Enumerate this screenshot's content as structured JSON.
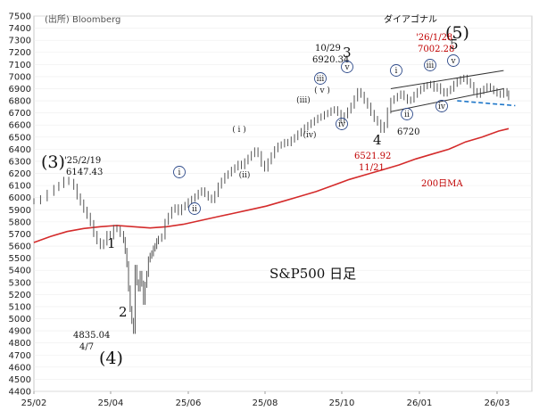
{
  "chart_data": {
    "type": "line",
    "source": "(出所) Bloomberg",
    "title": "S&P500 日足",
    "x_ticks": [
      "25/02",
      "25/04",
      "25/06",
      "25/08",
      "25/10",
      "26/01",
      "26/03"
    ],
    "y_ticks": [
      4400,
      4500,
      4600,
      4700,
      4800,
      4900,
      5000,
      5100,
      5200,
      5300,
      5400,
      5500,
      5600,
      5700,
      5800,
      5900,
      6000,
      6100,
      6200,
      6300,
      6400,
      6500,
      6600,
      6700,
      6800,
      6900,
      7000,
      7100,
      7200,
      7300,
      7400,
      7500
    ],
    "ylim": [
      4400,
      7500
    ],
    "series": [
      {
        "name": "S&P500",
        "style": "daily bars",
        "color": "#555555",
        "points": [
          [
            0,
            5970
          ],
          [
            4,
            5995
          ],
          [
            8,
            6040
          ],
          [
            12,
            6080
          ],
          [
            15,
            6105
          ],
          [
            18,
            6147
          ],
          [
            21,
            6130
          ],
          [
            24,
            6090
          ],
          [
            26,
            6010
          ],
          [
            28,
            5960
          ],
          [
            30,
            5900
          ],
          [
            32,
            5850
          ],
          [
            34,
            5790
          ],
          [
            36,
            5700
          ],
          [
            38,
            5640
          ],
          [
            40,
            5600
          ],
          [
            42,
            5630
          ],
          [
            44,
            5700
          ],
          [
            46,
            5680
          ],
          [
            48,
            5750
          ],
          [
            50,
            5740
          ],
          [
            52,
            5700
          ],
          [
            54,
            5650
          ],
          [
            55,
            5560
          ],
          [
            56,
            5450
          ],
          [
            57,
            5250
          ],
          [
            58,
            5080
          ],
          [
            59,
            4982
          ],
          [
            60,
            4900
          ],
          [
            61,
            5420
          ],
          [
            62,
            5300
          ],
          [
            63,
            5250
          ],
          [
            64,
            5370
          ],
          [
            65,
            5290
          ],
          [
            66,
            5140
          ],
          [
            67,
            5280
          ],
          [
            68,
            5370
          ],
          [
            69,
            5490
          ],
          [
            70,
            5520
          ],
          [
            71,
            5540
          ],
          [
            72,
            5580
          ],
          [
            73,
            5600
          ],
          [
            74,
            5640
          ],
          [
            75,
            5660
          ],
          [
            77,
            5680
          ],
          [
            79,
            5800
          ],
          [
            81,
            5850
          ],
          [
            83,
            5900
          ],
          [
            85,
            5920
          ],
          [
            87,
            5880
          ],
          [
            89,
            5920
          ],
          [
            91,
            5940
          ],
          [
            93,
            5970
          ],
          [
            95,
            5990
          ],
          [
            97,
            6010
          ],
          [
            99,
            6040
          ],
          [
            101,
            6060
          ],
          [
            103,
            6030
          ],
          [
            105,
            6000
          ],
          [
            107,
            5980
          ],
          [
            109,
            6030
          ],
          [
            111,
            6100
          ],
          [
            113,
            6140
          ],
          [
            115,
            6180
          ],
          [
            117,
            6200
          ],
          [
            119,
            6230
          ],
          [
            121,
            6250
          ],
          [
            123,
            6280
          ],
          [
            125,
            6260
          ],
          [
            127,
            6300
          ],
          [
            129,
            6330
          ],
          [
            131,
            6360
          ],
          [
            133,
            6390
          ],
          [
            135,
            6360
          ],
          [
            137,
            6280
          ],
          [
            139,
            6240
          ],
          [
            141,
            6300
          ],
          [
            143,
            6350
          ],
          [
            145,
            6400
          ],
          [
            147,
            6430
          ],
          [
            149,
            6440
          ],
          [
            151,
            6460
          ],
          [
            153,
            6450
          ],
          [
            155,
            6480
          ],
          [
            157,
            6500
          ],
          [
            159,
            6530
          ],
          [
            161,
            6550
          ],
          [
            163,
            6580
          ],
          [
            165,
            6600
          ],
          [
            167,
            6620
          ],
          [
            169,
            6640
          ],
          [
            171,
            6660
          ],
          [
            173,
            6670
          ],
          [
            175,
            6690
          ],
          [
            177,
            6700
          ],
          [
            179,
            6720
          ],
          [
            181,
            6730
          ],
          [
            183,
            6700
          ],
          [
            185,
            6640
          ],
          [
            187,
            6680
          ],
          [
            189,
            6720
          ],
          [
            191,
            6760
          ],
          [
            193,
            6820
          ],
          [
            195,
            6880
          ],
          [
            197,
            6850
          ],
          [
            199,
            6800
          ],
          [
            201,
            6760
          ],
          [
            203,
            6700
          ],
          [
            205,
            6650
          ],
          [
            207,
            6620
          ],
          [
            209,
            6560
          ],
          [
            211,
            6600
          ],
          [
            213,
            6720
          ],
          [
            215,
            6800
          ],
          [
            217,
            6820
          ],
          [
            219,
            6840
          ],
          [
            221,
            6860
          ],
          [
            223,
            6830
          ],
          [
            225,
            6800
          ],
          [
            227,
            6810
          ],
          [
            229,
            6850
          ],
          [
            231,
            6880
          ],
          [
            233,
            6900
          ],
          [
            235,
            6920
          ],
          [
            237,
            6930
          ],
          [
            239,
            6940
          ],
          [
            241,
            6900
          ],
          [
            243,
            6920
          ],
          [
            245,
            6880
          ],
          [
            247,
            6860
          ],
          [
            249,
            6880
          ],
          [
            251,
            6900
          ],
          [
            253,
            6940
          ],
          [
            255,
            6960
          ],
          [
            257,
            6980
          ],
          [
            259,
            6990
          ],
          [
            261,
            6960
          ],
          [
            263,
            6930
          ],
          [
            265,
            6880
          ],
          [
            267,
            6850
          ],
          [
            269,
            6880
          ],
          [
            271,
            6900
          ],
          [
            273,
            6920
          ],
          [
            275,
            6900
          ],
          [
            277,
            6880
          ],
          [
            279,
            6860
          ],
          [
            281,
            6850
          ],
          [
            283,
            6880
          ],
          [
            285,
            6860
          ],
          [
            286,
            6830
          ]
        ]
      },
      {
        "name": "200日MA",
        "color": "#d42b2b",
        "points": [
          [
            0,
            5630
          ],
          [
            10,
            5680
          ],
          [
            20,
            5720
          ],
          [
            30,
            5745
          ],
          [
            40,
            5760
          ],
          [
            50,
            5770
          ],
          [
            60,
            5760
          ],
          [
            70,
            5750
          ],
          [
            80,
            5760
          ],
          [
            90,
            5780
          ],
          [
            100,
            5810
          ],
          [
            110,
            5840
          ],
          [
            120,
            5870
          ],
          [
            130,
            5900
          ],
          [
            140,
            5930
          ],
          [
            150,
            5970
          ],
          [
            160,
            6010
          ],
          [
            170,
            6050
          ],
          [
            180,
            6100
          ],
          [
            190,
            6150
          ],
          [
            200,
            6190
          ],
          [
            210,
            6230
          ],
          [
            220,
            6270
          ],
          [
            230,
            6320
          ],
          [
            240,
            6360
          ],
          [
            250,
            6400
          ],
          [
            260,
            6460
          ],
          [
            270,
            6500
          ],
          [
            280,
            6550
          ],
          [
            286,
            6570
          ]
        ]
      }
    ],
    "trendlines": [
      {
        "name": "channel-top",
        "color": "#333333",
        "points": [
          [
            215,
            6900
          ],
          [
            283,
            7050
          ]
        ]
      },
      {
        "name": "channel-bottom",
        "color": "#333333",
        "points": [
          [
            215,
            6710
          ],
          [
            283,
            6900
          ]
        ]
      },
      {
        "name": "ダイアゴナル",
        "color": "#1f77c9",
        "dashed": true,
        "points": [
          [
            255,
            6800
          ],
          [
            290,
            6760
          ]
        ]
      }
    ],
    "annotations": {
      "wave3_top": "(3)",
      "date_3": "'25/2/19",
      "val_3": "6147.43",
      "wave4_low": "(4)",
      "val_4": "4835.04",
      "date_4": "4/7",
      "w1": "1",
      "w2": "2",
      "date_oct": "10/29",
      "val_oct": "6920.34",
      "w3": "3",
      "w4": "4",
      "val_nov": "6521.92",
      "date_nov": "11/21",
      "wave5": "(5)",
      "date_5": "'26/1/28",
      "val_5": "7002.28",
      "w5": "5",
      "diagonal": "ダイアゴナル",
      "ma_label": "200日MA",
      "val_6720": "6720",
      "sub_i": "i",
      "sub_ii": "ii",
      "sub_iii": "iii",
      "sub_iv": "iv",
      "sub_v": "v"
    }
  }
}
